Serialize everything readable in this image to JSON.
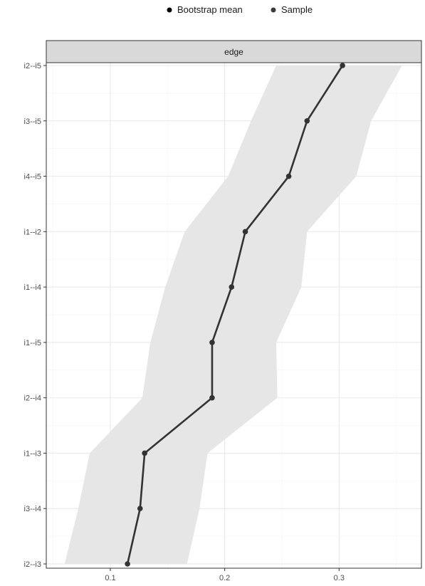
{
  "chart_data": {
    "type": "line",
    "facet_label": "edge",
    "legend": {
      "position": "top",
      "items": [
        {
          "name": "Bootstrap mean",
          "color": "#000000"
        },
        {
          "name": "Sample",
          "color": "#3a3a3a"
        }
      ]
    },
    "categories": [
      "i2--i3",
      "i3--i4",
      "i1--i3",
      "i2--i4",
      "i1--i5",
      "i1--i4",
      "i1--i2",
      "i4--i5",
      "i3--i5",
      "i2--i5"
    ],
    "series": [
      {
        "name": "Sample",
        "values": [
          0.115,
          0.126,
          0.13,
          0.189,
          0.189,
          0.206,
          0.218,
          0.256,
          0.272,
          0.303
        ]
      }
    ],
    "ci_lower": [
      0.06,
      0.072,
      0.082,
      0.128,
      0.135,
      0.148,
      0.165,
      0.203,
      0.223,
      0.245
    ],
    "ci_upper": [
      0.167,
      0.178,
      0.185,
      0.246,
      0.245,
      0.267,
      0.272,
      0.315,
      0.328,
      0.355
    ],
    "x_ticks": [
      0.1,
      0.2,
      0.3
    ],
    "xlim": [
      0.044,
      0.372
    ],
    "grid": true,
    "colors": {
      "band": "#e6e6e6",
      "line": "#333333",
      "grid_major": "#ebebeb",
      "grid_minor": "#f5f5f5",
      "strip_bg": "#d9d9d9",
      "frame": "#333333"
    }
  }
}
